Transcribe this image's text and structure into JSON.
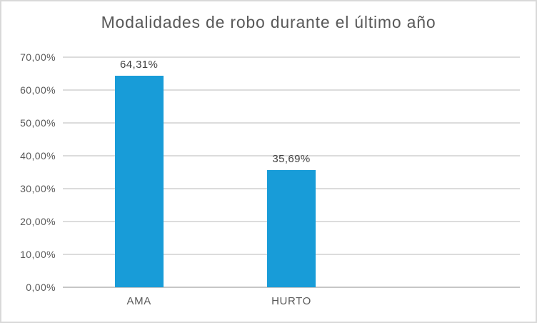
{
  "chart_data": {
    "type": "bar",
    "title": "Modalidades de robo durante el último año",
    "categories": [
      "AMA",
      "HURTO"
    ],
    "values": [
      64.31,
      35.69
    ],
    "value_labels": [
      "64,31%",
      "35,69%"
    ],
    "y_tick_values": [
      0,
      10,
      20,
      30,
      40,
      50,
      60,
      70
    ],
    "y_tick_labels": [
      "0,00%",
      "10,00%",
      "20,00%",
      "30,00%",
      "40,00%",
      "50,00%",
      "60,00%",
      "70,00%"
    ],
    "ylim": [
      0,
      70
    ],
    "grid": true,
    "legend": "none",
    "category_slots": 3,
    "colors": {
      "bar": "#189CD8",
      "gridline": "#DCDCDC",
      "axis_line": "#C6C6C6",
      "tick_text": "#595959",
      "data_label_text": "#404040",
      "title_text": "#595959",
      "frame_border": "#D9D9D9",
      "background": "#FFFFFF"
    }
  }
}
